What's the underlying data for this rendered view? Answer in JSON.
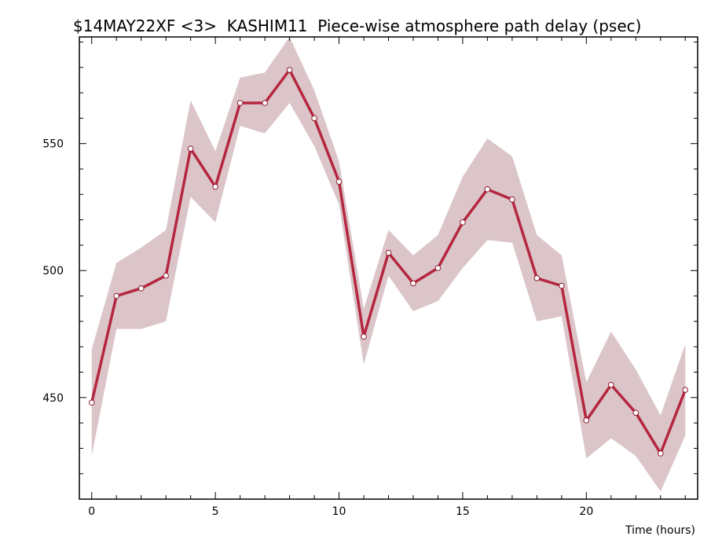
{
  "chart_data": {
    "type": "line",
    "title": "$14MAY22XF <3>  KASHIM11  Piece-wise atmosphere path delay (psec)",
    "xlabel": "Time (hours)",
    "ylabel": "",
    "xlim": [
      -0.5,
      24.5
    ],
    "ylim": [
      410,
      592
    ],
    "x_ticks": [
      0,
      5,
      10,
      15,
      20
    ],
    "y_ticks": [
      450,
      500,
      550
    ],
    "grid": false,
    "colors": {
      "line": "#b5263f",
      "band": "#dbc5c9",
      "marker_fill": "#ffffff",
      "marker_edge": "#8b1a30"
    },
    "series": [
      {
        "x": [
          0,
          1,
          2,
          3,
          4,
          5,
          6,
          7,
          8,
          9,
          10,
          11,
          12,
          13,
          14,
          15,
          16,
          17,
          18,
          19,
          20,
          21,
          22,
          23,
          24
        ],
        "values": [
          448,
          490,
          493,
          498,
          548,
          533,
          566,
          566,
          579,
          560,
          535,
          474,
          507,
          495,
          501,
          519,
          532,
          528,
          497,
          494,
          441,
          455,
          444,
          428,
          453
        ],
        "upper": [
          469,
          503,
          509,
          516,
          567,
          547,
          576,
          578,
          592,
          571,
          543,
          485,
          516,
          506,
          514,
          537,
          552,
          545,
          514,
          506,
          456,
          476,
          461,
          443,
          471
        ],
        "lower": [
          427,
          477,
          477,
          480,
          529,
          519,
          557,
          554,
          566,
          549,
          526,
          463,
          498,
          484,
          488,
          501,
          512,
          511,
          480,
          482,
          426,
          434,
          427,
          413,
          435
        ]
      }
    ]
  }
}
